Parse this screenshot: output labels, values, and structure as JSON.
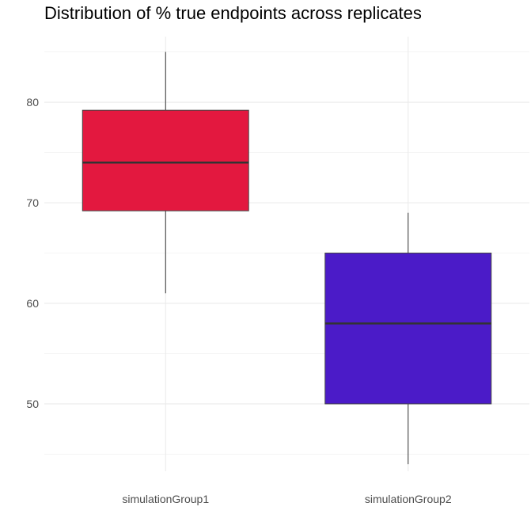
{
  "chart_data": {
    "type": "boxplot",
    "title": "Distribution of % true endpoints across replicates",
    "xlabel": "",
    "ylabel": "",
    "categories": [
      "simulationGroup1",
      "simulationGroup2"
    ],
    "boxes": [
      {
        "category": "simulationGroup1",
        "min": 61,
        "q1": 69.2,
        "median": 74,
        "q3": 79.2,
        "max": 85,
        "color": "#E3183F"
      },
      {
        "category": "simulationGroup2",
        "min": 44,
        "q1": 50,
        "median": 58,
        "q3": 65,
        "max": 69,
        "color": "#4B1BC8"
      }
    ],
    "yticks": [
      50,
      60,
      70,
      80
    ],
    "yticks_labels": [
      "50",
      "60",
      "70",
      "80"
    ],
    "ylim": [
      43.3,
      86.5
    ],
    "grid": true,
    "legend": "none"
  }
}
